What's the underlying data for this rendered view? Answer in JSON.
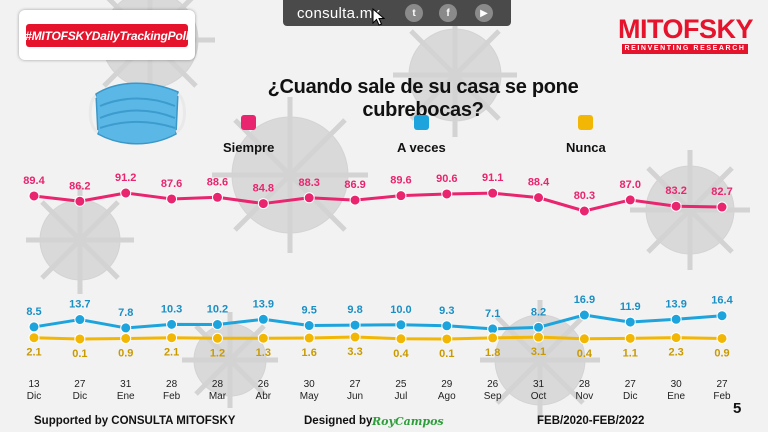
{
  "header": {
    "site": "consulta.mx",
    "social_icons": [
      "twitter-icon",
      "facebook-icon",
      "youtube-icon"
    ],
    "hashtag": "#MITOFSKYDailyTrackingPoll",
    "logo_name": "MITOFSKY",
    "logo_tagline": "REINVENTING RESEARCH"
  },
  "footer": {
    "supported": "Supported by  CONSULTA   MITOFSKY",
    "designed": "Designed by",
    "designer": "RoyCampos",
    "period": "FEB/2020-FEB/2022",
    "page": "5"
  },
  "colors": {
    "brand": "#e5142c",
    "siempre": "#e8256e",
    "a_veces": "#1ea4dd",
    "nunca": "#f2b705",
    "nunca_label": "#c99a00"
  },
  "chart_data": {
    "type": "line",
    "title": "¿Cuando sale de su casa se pone cubrebocas?",
    "x": [
      {
        "day": "13",
        "month": "Dic"
      },
      {
        "day": "27",
        "month": "Dic"
      },
      {
        "day": "31",
        "month": "Ene"
      },
      {
        "day": "28",
        "month": "Feb"
      },
      {
        "day": "28",
        "month": "Mar"
      },
      {
        "day": "26",
        "month": "Abr"
      },
      {
        "day": "30",
        "month": "May"
      },
      {
        "day": "27",
        "month": "Jun"
      },
      {
        "day": "25",
        "month": "Jul"
      },
      {
        "day": "29",
        "month": "Ago"
      },
      {
        "day": "26",
        "month": "Sep"
      },
      {
        "day": "31",
        "month": "Oct"
      },
      {
        "day": "28",
        "month": "Nov"
      },
      {
        "day": "27",
        "month": "Dic"
      },
      {
        "day": "30",
        "month": "Ene"
      },
      {
        "day": "27",
        "month": "Feb"
      }
    ],
    "series": [
      {
        "name": "Siempre",
        "values": [
          89.4,
          86.2,
          91.2,
          87.6,
          88.6,
          84.8,
          88.3,
          86.9,
          89.6,
          90.6,
          91.1,
          88.4,
          80.3,
          87.0,
          83.2,
          82.7
        ],
        "labels": [
          "89.4",
          "86.2",
          "91.2",
          "87.6",
          "88.6",
          "84.8",
          "88.3",
          "86.9",
          "89.6",
          "90.6",
          "91.1",
          "88.4",
          "80.3",
          "87.0",
          "83.2",
          "82.7"
        ]
      },
      {
        "name": "A veces",
        "values": [
          8.5,
          13.7,
          7.8,
          10.3,
          10.2,
          13.9,
          9.5,
          9.8,
          10.0,
          9.3,
          7.1,
          8.2,
          16.9,
          11.9,
          13.9,
          16.4
        ],
        "labels": [
          "8.5",
          "13.7",
          "7.8",
          "10.3",
          "10.2",
          "13.9",
          "9.5",
          "9.8",
          "10.0",
          "9.3",
          "7.1",
          "8.2",
          "16.9",
          "11.9",
          "13.9",
          "16.4"
        ]
      },
      {
        "name": "Nunca",
        "values": [
          2.1,
          0.1,
          0.9,
          2.1,
          1.2,
          1.3,
          1.6,
          3.3,
          0.4,
          0.1,
          1.8,
          3.1,
          0.4,
          1.1,
          2.3,
          0.9
        ],
        "labels": [
          "2.1",
          "0.1",
          "0.9",
          "2.1",
          "1.2",
          "1.3",
          "1.6",
          "3.3",
          "0.4",
          "0.1",
          "1.8",
          "3.1",
          "0.4",
          "1.1",
          "2.3",
          "0.9"
        ]
      }
    ],
    "legend_placement": "top",
    "grid": false
  }
}
